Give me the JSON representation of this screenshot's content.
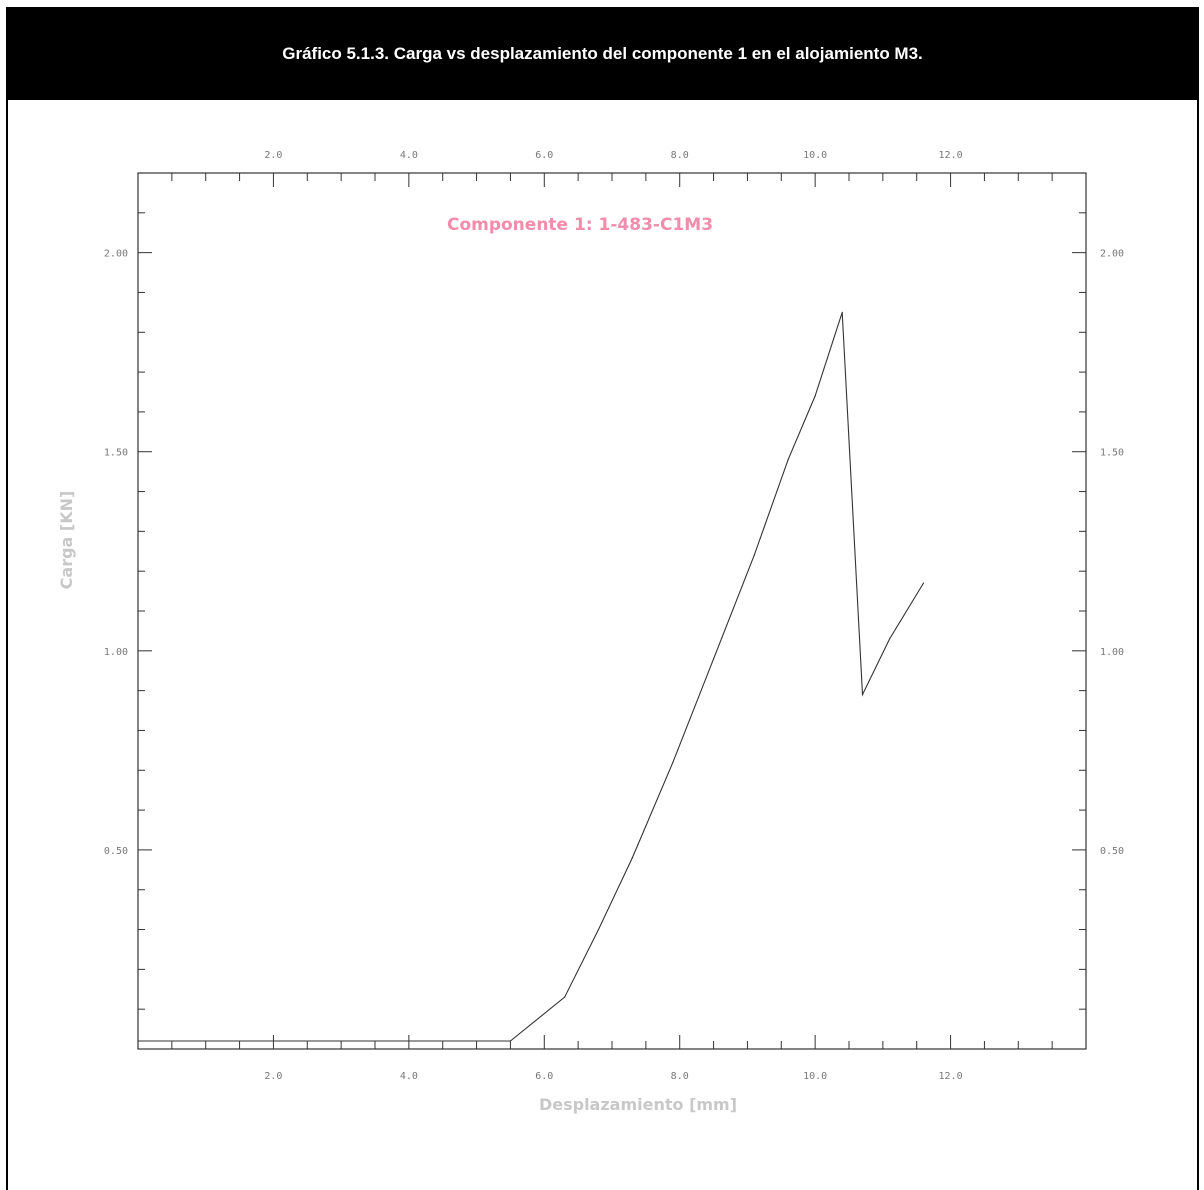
{
  "caption": "Gráfico 5.1.3. Carga vs desplazamiento del componente 1 en el alojamiento M3.",
  "chart_data": {
    "type": "line",
    "series_title": "Componente 1: 1-483-C1M3",
    "xlabel": "Desplazamiento [mm]",
    "ylabel": "Carga [KN]",
    "xlim": [
      0.0,
      14.0
    ],
    "ylim": [
      0.0,
      2.2
    ],
    "x_ticks": [
      "2.0",
      "4.0",
      "6.0",
      "8.0",
      "10.0",
      "12.0"
    ],
    "y_ticks": [
      "0.50",
      "1.00",
      "1.50",
      "2.00"
    ],
    "series": [
      {
        "x": [
          0.0,
          4.0,
          5.5,
          6.3,
          6.8,
          7.3,
          7.9,
          8.5,
          9.1,
          9.6,
          10.0,
          10.4,
          10.7,
          11.1,
          11.6
        ],
        "y": [
          0.02,
          0.02,
          0.02,
          0.13,
          0.3,
          0.48,
          0.72,
          0.98,
          1.24,
          1.48,
          1.64,
          1.85,
          0.89,
          1.03,
          1.17
        ]
      }
    ],
    "colors": {
      "line": "#333333",
      "axis": "#333333",
      "series_title": "#f28cab",
      "labels": "#c8c8c8"
    }
  }
}
